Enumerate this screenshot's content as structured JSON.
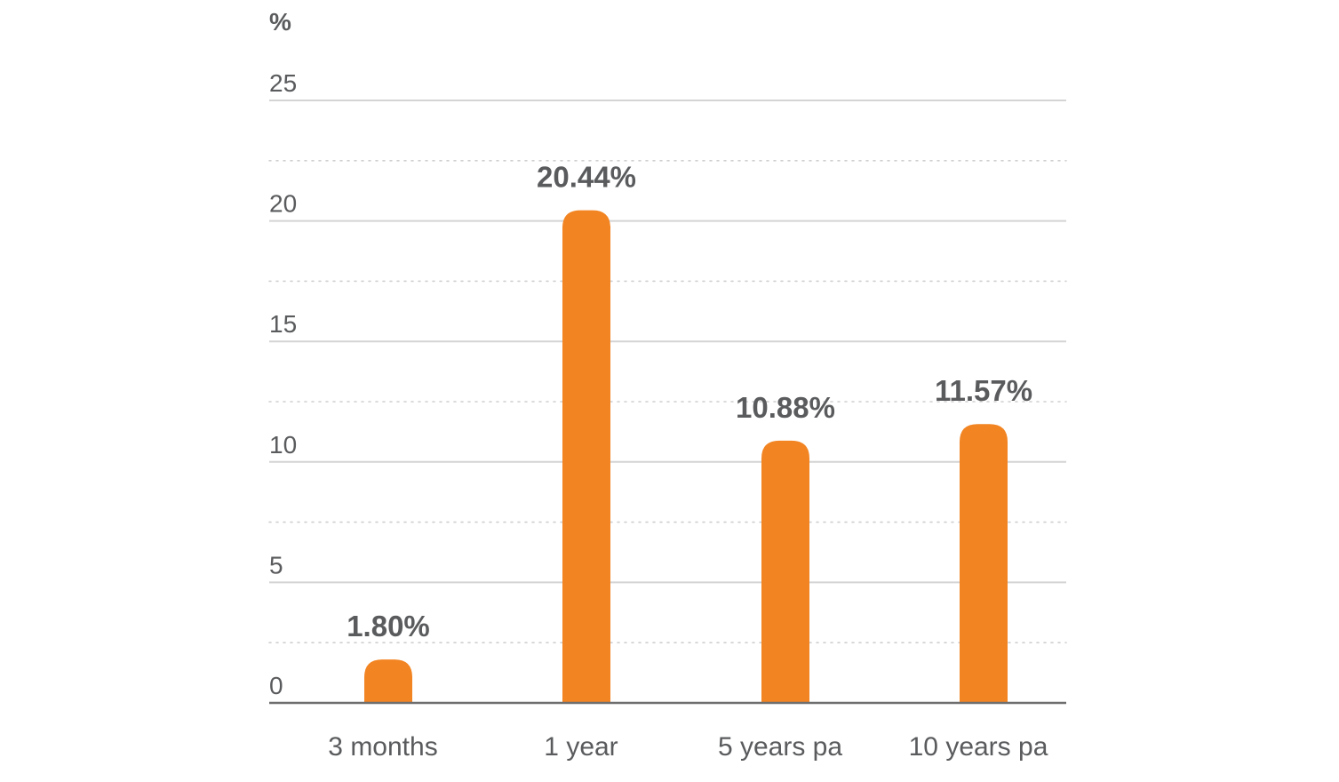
{
  "chart_data": {
    "type": "bar",
    "unit_label": "%",
    "categories": [
      "3 months",
      "1 year",
      "5 years pa",
      "10 years pa"
    ],
    "values": [
      1.8,
      20.44,
      10.88,
      11.57
    ],
    "data_labels": [
      "1.80%",
      "20.44%",
      "10.88%",
      "11.57%"
    ],
    "yticks": [
      "0",
      "5",
      "10",
      "15",
      "20",
      "25"
    ],
    "ylim": [
      0,
      25
    ],
    "ytick_values": [
      0,
      5,
      10,
      15,
      20,
      25
    ],
    "minor_grid_values": [
      2.5,
      7.5,
      12.5,
      17.5,
      22.5
    ],
    "grid": true,
    "legend": "none",
    "colors": {
      "bar": "#f28422",
      "text": "#5a5b5d",
      "major_grid": "#d4d4d4",
      "minor_grid": "#cfcfcf",
      "axis": "#6e6e6e"
    }
  }
}
